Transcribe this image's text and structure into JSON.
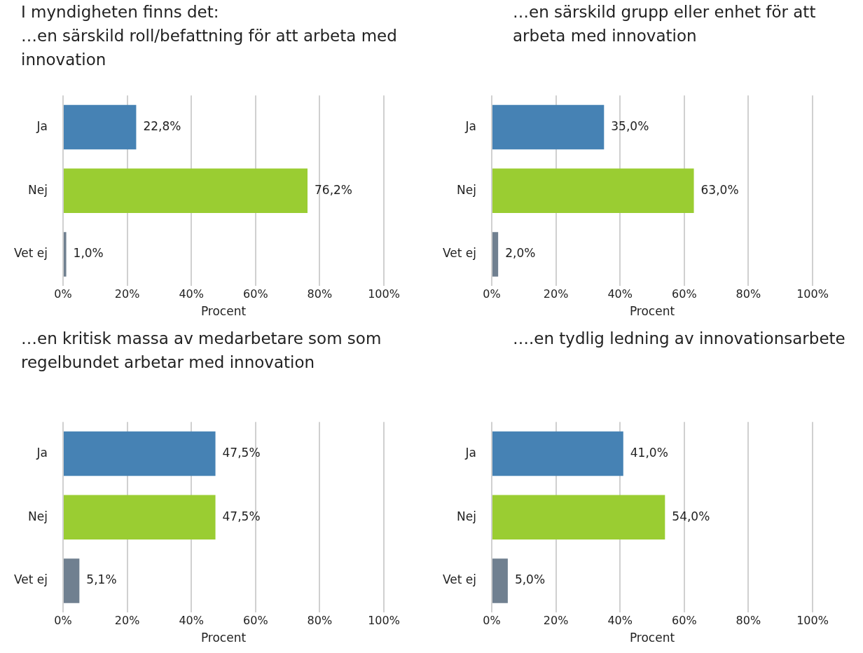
{
  "chart_data": [
    {
      "type": "bar",
      "orientation": "horizontal",
      "annotations": [
        "I myndigheten finns det:"
      ],
      "title": "…en särskild roll/befattning för att arbeta med innovation",
      "xlabel": "Procent",
      "categories": [
        "Ja",
        "Nej",
        "Vet ej"
      ],
      "values": [
        22.8,
        76.2,
        1.0
      ],
      "colors": [
        "#4682b4",
        "#9acd32",
        "#708090"
      ],
      "value_labels": [
        "22,8%",
        "76,2%",
        "1,0%"
      ],
      "xlim": [
        0,
        100
      ],
      "xticks": [
        {
          "value": 0,
          "label": "0%"
        },
        {
          "value": 20,
          "label": "20%"
        },
        {
          "value": 40,
          "label": "40%"
        },
        {
          "value": 60,
          "label": "60%"
        },
        {
          "value": 80,
          "label": "80%"
        },
        {
          "value": 100,
          "label": "100%"
        }
      ],
      "grid": "x"
    },
    {
      "type": "bar",
      "orientation": "horizontal",
      "title": "…en särskild grupp eller enhet för att arbeta med innovation",
      "xlabel": "Procent",
      "categories": [
        "Ja",
        "Nej",
        "Vet ej"
      ],
      "values": [
        35.0,
        63.0,
        2.0
      ],
      "colors": [
        "#4682b4",
        "#9acd32",
        "#708090"
      ],
      "value_labels": [
        "35,0%",
        "63,0%",
        "2,0%"
      ],
      "xlim": [
        0,
        100
      ],
      "xticks": [
        {
          "value": 0,
          "label": "0%"
        },
        {
          "value": 20,
          "label": "20%"
        },
        {
          "value": 40,
          "label": "40%"
        },
        {
          "value": 60,
          "label": "60%"
        },
        {
          "value": 80,
          "label": "80%"
        },
        {
          "value": 100,
          "label": "100%"
        }
      ],
      "grid": "x"
    },
    {
      "type": "bar",
      "orientation": "horizontal",
      "title": "…en kritisk massa av medarbetare som som regelbundet arbetar med innovation",
      "xlabel": "Procent",
      "categories": [
        "Ja",
        "Nej",
        "Vet ej"
      ],
      "values": [
        47.5,
        47.5,
        5.1
      ],
      "colors": [
        "#4682b4",
        "#9acd32",
        "#708090"
      ],
      "value_labels": [
        "47,5%",
        "47,5%",
        "5,1%"
      ],
      "xlim": [
        0,
        100
      ],
      "xticks": [
        {
          "value": 0,
          "label": "0%"
        },
        {
          "value": 20,
          "label": "20%"
        },
        {
          "value": 40,
          "label": "40%"
        },
        {
          "value": 60,
          "label": "60%"
        },
        {
          "value": 80,
          "label": "80%"
        },
        {
          "value": 100,
          "label": "100%"
        }
      ],
      "grid": "x"
    },
    {
      "type": "bar",
      "orientation": "horizontal",
      "title": "….en tydlig ledning av innovationsarbete",
      "xlabel": "Procent",
      "categories": [
        "Ja",
        "Nej",
        "Vet ej"
      ],
      "values": [
        41.0,
        54.0,
        5.0
      ],
      "colors": [
        "#4682b4",
        "#9acd32",
        "#708090"
      ],
      "value_labels": [
        "41,0%",
        "54,0%",
        "5,0%"
      ],
      "xlim": [
        0,
        100
      ],
      "xticks": [
        {
          "value": 0,
          "label": "0%"
        },
        {
          "value": 20,
          "label": "20%"
        },
        {
          "value": 40,
          "label": "40%"
        },
        {
          "value": 60,
          "label": "60%"
        },
        {
          "value": 80,
          "label": "80%"
        },
        {
          "value": 100,
          "label": "100%"
        }
      ],
      "grid": "x"
    }
  ]
}
